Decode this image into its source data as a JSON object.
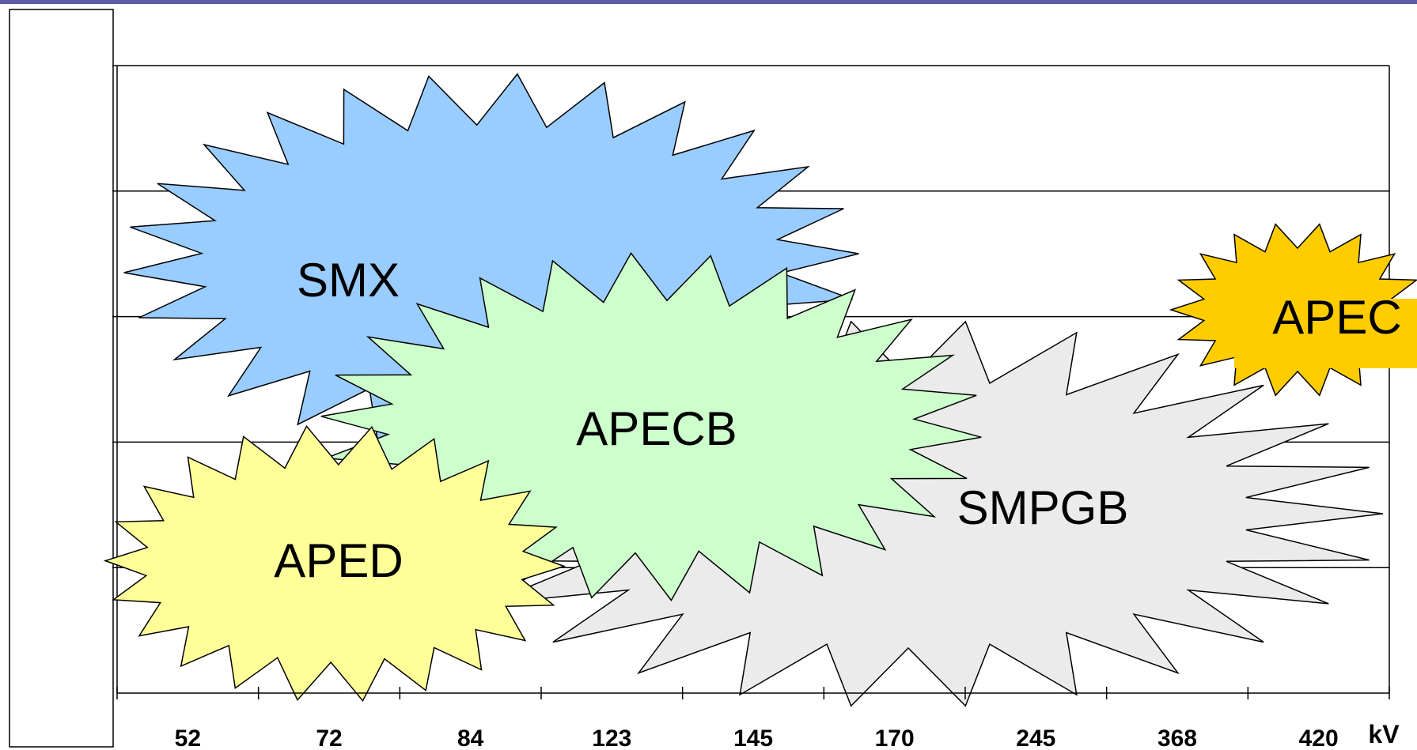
{
  "chart_data": {
    "type": "bubble-starburst",
    "unit": "kV",
    "x_categories": [
      "52",
      "72",
      "84",
      "123",
      "145",
      "170",
      "245",
      "368",
      "420"
    ],
    "y_gridlines": 5,
    "grid": true,
    "series": [
      {
        "name": "SMX",
        "x_from": "52",
        "x_to": "170",
        "color": "#99ccff"
      },
      {
        "name": "SMPGB",
        "x_from": "123",
        "x_to": "420",
        "color": "#ebebeb"
      },
      {
        "name": "APECB",
        "x_from": "84",
        "x_to": "170",
        "color": "#ccffcc"
      },
      {
        "name": "APED",
        "x_from": "52",
        "x_to": "123",
        "color": "#ffff99"
      },
      {
        "name": "APEC",
        "x_from": "420",
        "x_to": "420",
        "color": "#ffcc00"
      }
    ]
  },
  "colors": {
    "top_rule": "#5b5ba8",
    "grid": "#000000",
    "outline": "#000000"
  }
}
